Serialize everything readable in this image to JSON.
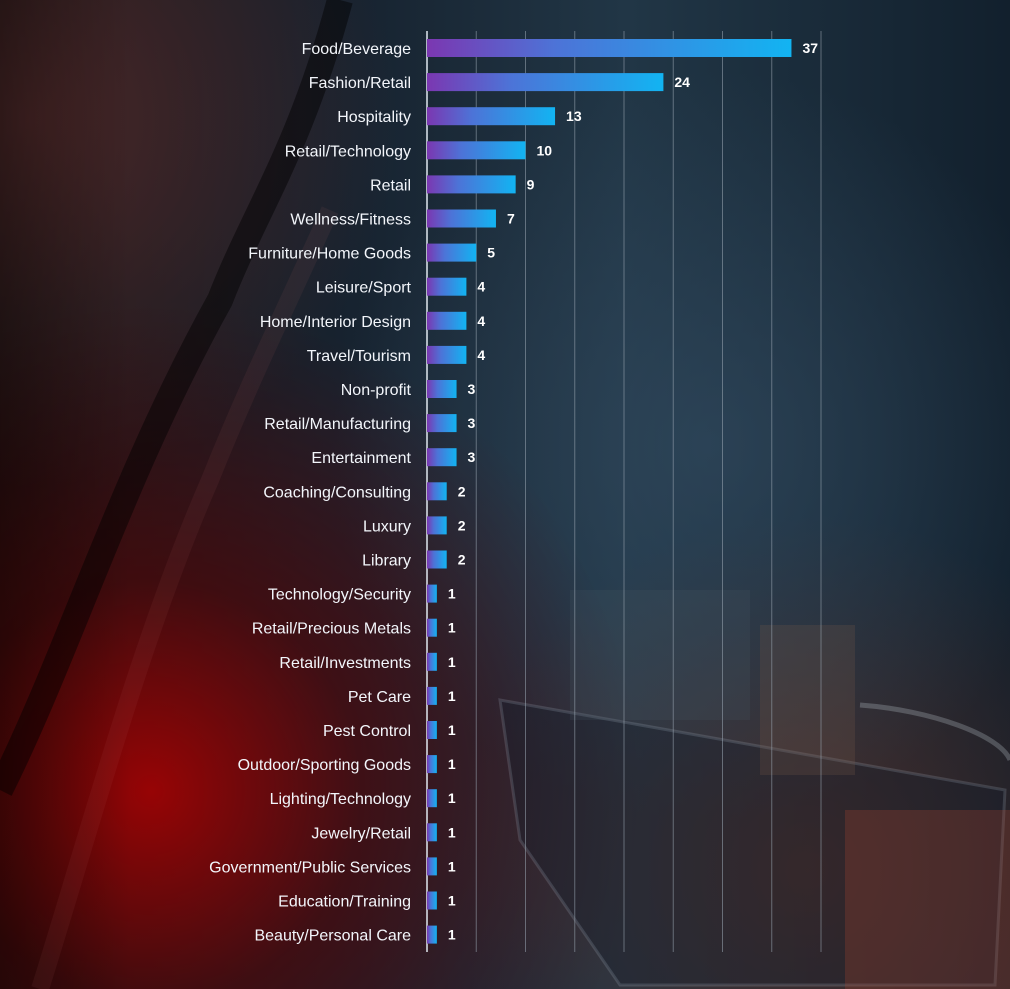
{
  "chart_data": {
    "type": "bar",
    "orientation": "horizontal",
    "categories": [
      "Food/Beverage",
      "Fashion/Retail",
      "Hospitality",
      "Retail/Technology",
      "Retail",
      "Wellness/Fitness",
      "Furniture/Home Goods",
      "Leisure/Sport",
      "Home/Interior Design",
      "Travel/Tourism",
      "Non-profit",
      "Retail/Manufacturing",
      "Entertainment",
      "Coaching/Consulting",
      "Luxury",
      "Library",
      "Technology/Security",
      "Retail/Precious Metals",
      "Retail/Investments",
      "Pet Care",
      "Pest Control",
      "Outdoor/Sporting Goods",
      "Lighting/Technology",
      "Jewelry/Retail",
      "Government/Public Services",
      "Education/Training",
      "Beauty/Personal Care"
    ],
    "values": [
      37,
      24,
      13,
      10,
      9,
      7,
      5,
      4,
      4,
      4,
      3,
      3,
      3,
      2,
      2,
      2,
      1,
      1,
      1,
      1,
      1,
      1,
      1,
      1,
      1,
      1,
      1
    ],
    "xlim": [
      0,
      40
    ],
    "grid": true,
    "legend": "none",
    "colors": {
      "bar_start": "#7b37b1",
      "bar_mid": "#4d73d7",
      "bar_end": "#12b4f2",
      "grid": "#9aa6b2",
      "axis": "#dfe7ef",
      "text": "#f3f6fb"
    }
  }
}
